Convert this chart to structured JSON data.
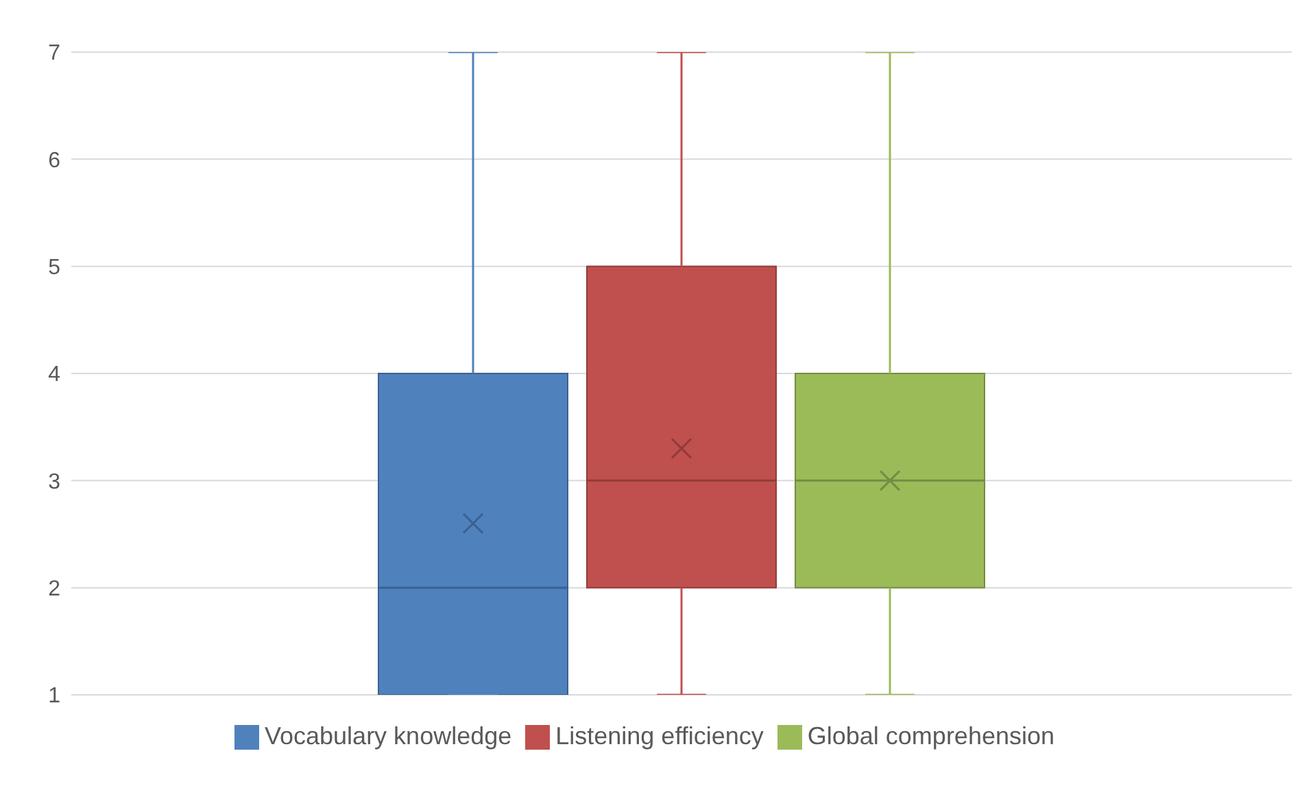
{
  "chart_data": {
    "type": "box",
    "categories": [
      null
    ],
    "series": [
      {
        "name": "Vocabulary knowledge",
        "color": "#4f81bd",
        "boxes": [
          {
            "low": 1,
            "q1": 1,
            "median": 2,
            "q3": 4,
            "high": 7,
            "mean": 2.6
          }
        ]
      },
      {
        "name": "Listening efficiency",
        "color": "#c0504d",
        "boxes": [
          {
            "low": 1,
            "q1": 2,
            "median": 3,
            "q3": 5,
            "high": 7,
            "mean": 3.3
          }
        ]
      },
      {
        "name": "Global comprehension",
        "color": "#9bbb59",
        "boxes": [
          {
            "low": 1,
            "q1": 2,
            "median": 3,
            "q3": 4,
            "high": 7,
            "mean": 3.0
          }
        ]
      }
    ],
    "ylim": [
      1,
      7
    ],
    "yticks": [
      1,
      2,
      3,
      4,
      5,
      6,
      7
    ],
    "grid": "y",
    "legend": "bottom"
  }
}
